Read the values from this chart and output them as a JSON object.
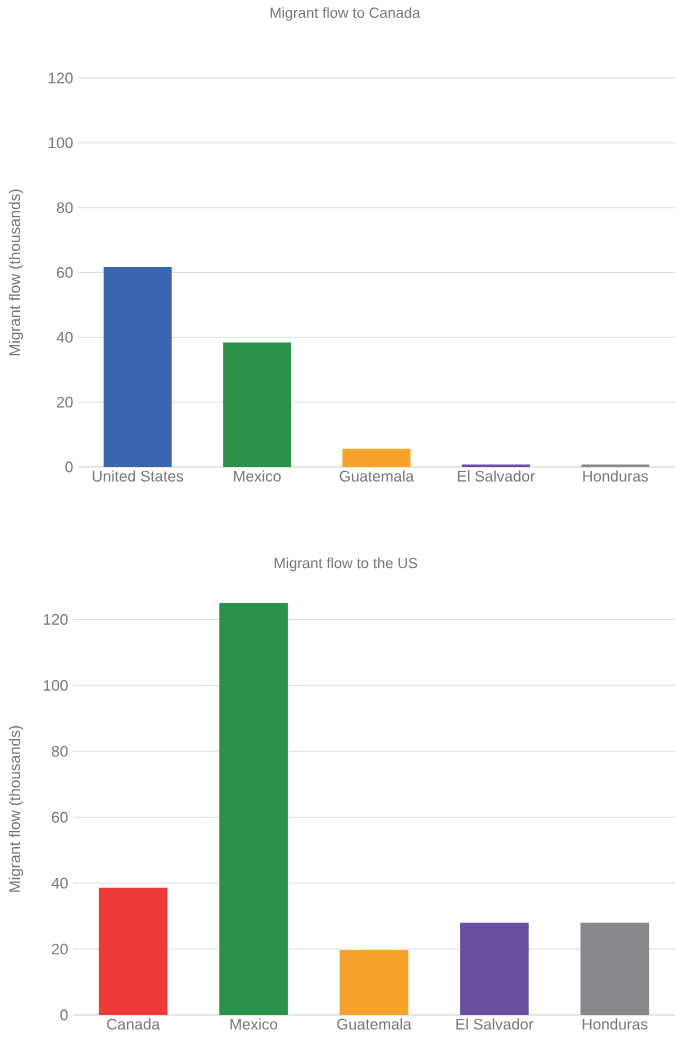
{
  "chart_data": [
    {
      "type": "bar",
      "title": "Migrant flow to Canada",
      "ylabel": "Migrant flow (thousands)",
      "categories": [
        "United States",
        "Mexico",
        "Guatemala",
        "El Salvador",
        "Honduras"
      ],
      "values": [
        61.7,
        38.4,
        5.6,
        0.8,
        0.8
      ],
      "colors": [
        "#3a66b0",
        "#2b9146",
        "#f6a22b",
        "#6a4fa0",
        "#88888c"
      ],
      "ylim": [
        0,
        120
      ],
      "yticks": [
        0,
        20,
        40,
        60,
        80,
        100,
        120
      ],
      "grid": "y"
    },
    {
      "type": "bar",
      "title": "Migrant flow to the US",
      "ylabel": "Migrant flow (thousands)",
      "categories": [
        "Canada",
        "Mexico",
        "Guatemala",
        "El Salvador",
        "Honduras"
      ],
      "values": [
        38.6,
        125,
        19.7,
        28.0,
        28.0
      ],
      "colors": [
        "#ee3b3a",
        "#2b9146",
        "#f6a22b",
        "#6a4fa0",
        "#88888c"
      ],
      "ylim": [
        0,
        125
      ],
      "yticks": [
        0,
        20,
        40,
        60,
        80,
        100,
        120
      ],
      "grid": "y"
    }
  ]
}
